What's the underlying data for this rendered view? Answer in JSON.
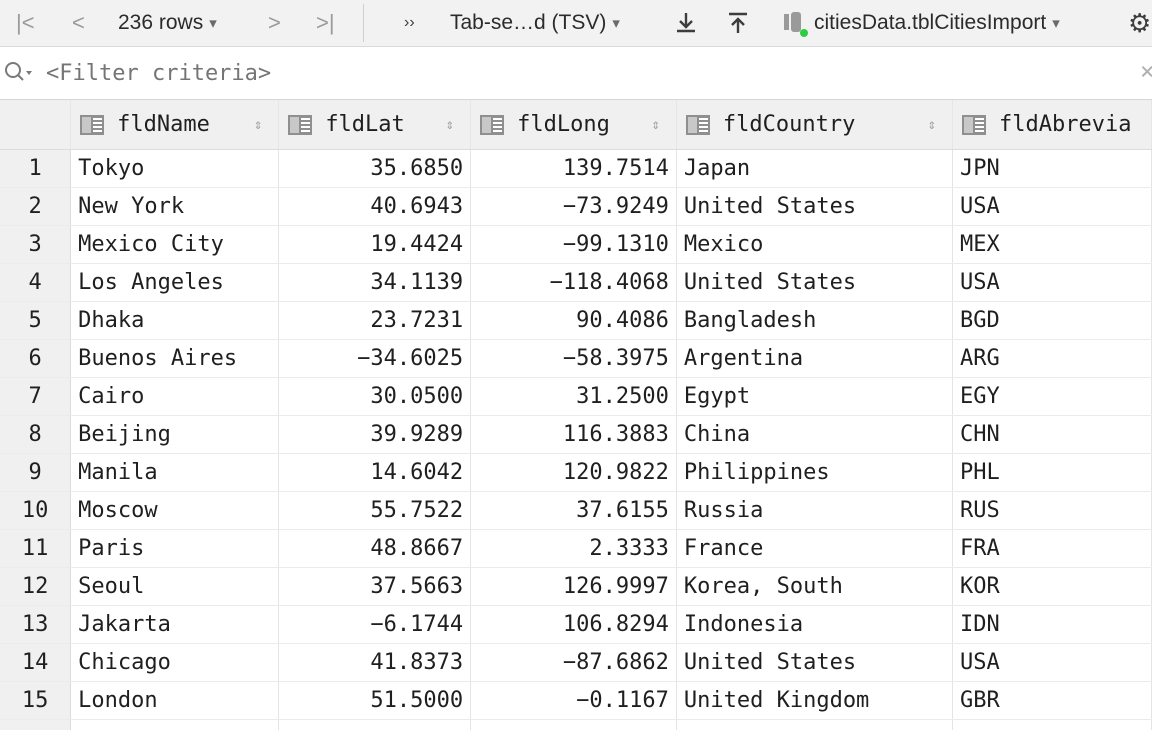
{
  "toolbar": {
    "rows_label": "236 rows",
    "format_label": "Tab-se…d (TSV)",
    "table_label": "citiesData.tblCitiesImport"
  },
  "filter": {
    "placeholder": "<Filter criteria>"
  },
  "grid": {
    "columns": [
      "fldName",
      "fldLat",
      "fldLong",
      "fldCountry",
      "fldAbrevia"
    ],
    "rows": [
      {
        "n": "1",
        "name": "Tokyo",
        "lat": "35.6850",
        "long": "139.7514",
        "country": "Japan",
        "abbr": "JPN"
      },
      {
        "n": "2",
        "name": "New York",
        "lat": "40.6943",
        "long": "−73.9249",
        "country": "United States",
        "abbr": "USA"
      },
      {
        "n": "3",
        "name": "Mexico City",
        "lat": "19.4424",
        "long": "−99.1310",
        "country": "Mexico",
        "abbr": "MEX"
      },
      {
        "n": "4",
        "name": "Los Angeles",
        "lat": "34.1139",
        "long": "−118.4068",
        "country": "United States",
        "abbr": "USA"
      },
      {
        "n": "5",
        "name": "Dhaka",
        "lat": "23.7231",
        "long": "90.4086",
        "country": "Bangladesh",
        "abbr": "BGD"
      },
      {
        "n": "6",
        "name": "Buenos Aires",
        "lat": "−34.6025",
        "long": "−58.3975",
        "country": "Argentina",
        "abbr": "ARG"
      },
      {
        "n": "7",
        "name": "Cairo",
        "lat": "30.0500",
        "long": "31.2500",
        "country": "Egypt",
        "abbr": "EGY"
      },
      {
        "n": "8",
        "name": "Beijing",
        "lat": "39.9289",
        "long": "116.3883",
        "country": "China",
        "abbr": "CHN"
      },
      {
        "n": "9",
        "name": "Manila",
        "lat": "14.6042",
        "long": "120.9822",
        "country": "Philippines",
        "abbr": "PHL"
      },
      {
        "n": "10",
        "name": "Moscow",
        "lat": "55.7522",
        "long": "37.6155",
        "country": "Russia",
        "abbr": "RUS"
      },
      {
        "n": "11",
        "name": "Paris",
        "lat": "48.8667",
        "long": "2.3333",
        "country": "France",
        "abbr": "FRA"
      },
      {
        "n": "12",
        "name": "Seoul",
        "lat": "37.5663",
        "long": "126.9997",
        "country": "Korea, South",
        "abbr": "KOR"
      },
      {
        "n": "13",
        "name": "Jakarta",
        "lat": "−6.1744",
        "long": "106.8294",
        "country": "Indonesia",
        "abbr": "IDN"
      },
      {
        "n": "14",
        "name": "Chicago",
        "lat": "41.8373",
        "long": "−87.6862",
        "country": "United States",
        "abbr": "USA"
      },
      {
        "n": "15",
        "name": "London",
        "lat": "51.5000",
        "long": "−0.1167",
        "country": "United Kingdom",
        "abbr": "GBR"
      }
    ]
  }
}
